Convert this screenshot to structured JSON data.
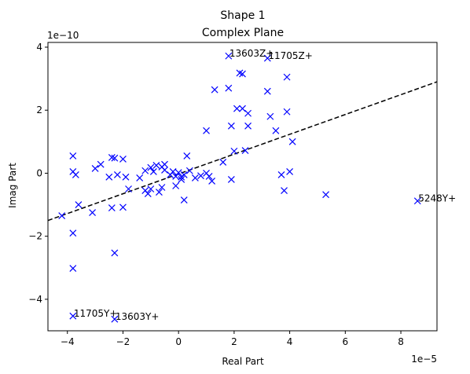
{
  "chart_data": {
    "type": "scatter",
    "title_line1": "Shape 1",
    "title_line2": "Complex Plane",
    "xlabel": "Real Part",
    "ylabel": "Imag Part",
    "x_exponent": "1e−5",
    "y_exponent": "1e−10",
    "xlim": [
      -4.7e-05,
      9.3e-05
    ],
    "ylim": [
      -5e-10,
      4.15e-10
    ],
    "xticks": [
      -4e-05,
      -2e-05,
      0,
      2e-05,
      4e-05,
      6e-05,
      8e-05
    ],
    "xtick_labels": [
      "−4",
      "−2",
      "0",
      "2",
      "4",
      "6",
      "8"
    ],
    "yticks": [
      -4e-10,
      -2e-10,
      0,
      2e-10,
      4e-10
    ],
    "ytick_labels": [
      "−4",
      "−2",
      "0",
      "2",
      "4"
    ],
    "grid": false,
    "marker": "x",
    "marker_color": "#0000ff",
    "fit_line": {
      "style": "dashed",
      "color": "#000000",
      "x": [
        -4.7e-05,
        9.3e-05
      ],
      "y": [
        -1.5e-10,
        2.9e-10
      ]
    },
    "points": [
      [
        -3.8e-05,
        -4.53e-10
      ],
      [
        -2.3e-05,
        -4.63e-10
      ],
      [
        -3.8e-05,
        -3.02e-10
      ],
      [
        -2.3e-05,
        -2.53e-10
      ],
      [
        -3.8e-05,
        -1.9e-10
      ],
      [
        -4.2e-05,
        -1.35e-10
      ],
      [
        -3.1e-05,
        -1.25e-10
      ],
      [
        -2.4e-05,
        -1.1e-10
      ],
      [
        -2e-05,
        -1.08e-10
      ],
      [
        -3.8e-05,
        5.5e-11
      ],
      [
        -3.8e-05,
        5e-12
      ],
      [
        -3.7e-05,
        -5e-12
      ],
      [
        -3.6e-05,
        -1e-10
      ],
      [
        -3e-05,
        1.5e-11
      ],
      [
        -2.8e-05,
        2.8e-11
      ],
      [
        -2.5e-05,
        -1.2e-11
      ],
      [
        -2.4e-05,
        5e-11
      ],
      [
        -2.3e-05,
        4.8e-11
      ],
      [
        -2.2e-05,
        -5e-12
      ],
      [
        -2e-05,
        4.5e-11
      ],
      [
        -1.9e-05,
        -1.2e-11
      ],
      [
        -1.8e-05,
        -5e-11
      ],
      [
        -1.4e-05,
        -1.5e-11
      ],
      [
        -1.2e-05,
        -5.5e-11
      ],
      [
        -1.2e-05,
        8e-12
      ],
      [
        -1.1e-05,
        -6.5e-11
      ],
      [
        -1e-05,
        1.8e-11
      ],
      [
        -1e-05,
        -5e-11
      ],
      [
        -9e-06,
        5e-12
      ],
      [
        -8e-06,
        2.5e-11
      ],
      [
        -7e-06,
        -6e-11
      ],
      [
        -6e-06,
        -4.5e-11
      ],
      [
        -6e-06,
        2e-11
      ],
      [
        -5e-06,
        1e-11
      ],
      [
        -5e-06,
        2.8e-11
      ],
      [
        -3e-06,
        -5e-12
      ],
      [
        -2e-06,
        5e-12
      ],
      [
        -1e-06,
        -4e-11
      ],
      [
        -1e-06,
        -1e-11
      ],
      [
        0.0,
        2e-12
      ],
      [
        1e-06,
        -1.2e-11
      ],
      [
        1e-06,
        -2e-11
      ],
      [
        2e-06,
        -5e-12
      ],
      [
        2e-06,
        -8.5e-11
      ],
      [
        3e-06,
        5.5e-11
      ],
      [
        4e-06,
        8e-12
      ],
      [
        6e-06,
        -1.5e-11
      ],
      [
        8e-06,
        -8e-12
      ],
      [
        1e-05,
        0.0
      ],
      [
        1.2e-05,
        -2.5e-11
      ],
      [
        1e-05,
        1.35e-10
      ],
      [
        1.1e-05,
        -1e-11
      ],
      [
        1.3e-05,
        2.65e-10
      ],
      [
        1.8e-05,
        3.72e-10
      ],
      [
        1.8e-05,
        2.7e-10
      ],
      [
        1.9e-05,
        1.5e-10
      ],
      [
        2e-05,
        7e-11
      ],
      [
        1.9e-05,
        -2e-11
      ],
      [
        2.1e-05,
        2.05e-10
      ],
      [
        2.2e-05,
        3.18e-10
      ],
      [
        2.3e-05,
        3.15e-10
      ],
      [
        2.3e-05,
        2.05e-10
      ],
      [
        2.5e-05,
        1.9e-10
      ],
      [
        2.5e-05,
        1.5e-10
      ],
      [
        2.4e-05,
        7.2e-11
      ],
      [
        1.6e-05,
        3.5e-11
      ],
      [
        3.2e-05,
        3.65e-10
      ],
      [
        3.2e-05,
        2.6e-10
      ],
      [
        3.3e-05,
        1.8e-10
      ],
      [
        3.5e-05,
        1.35e-10
      ],
      [
        3.7e-05,
        -5e-12
      ],
      [
        3.8e-05,
        -5.5e-11
      ],
      [
        3.9e-05,
        3.05e-10
      ],
      [
        3.9e-05,
        1.95e-10
      ],
      [
        4e-05,
        5e-12
      ],
      [
        4.1e-05,
        1e-10
      ],
      [
        5.3e-05,
        -6.8e-11
      ],
      [
        8.6e-05,
        -8.8e-11
      ]
    ],
    "annotations": [
      {
        "text": "13603Z+",
        "x": 1.8e-05,
        "y": 3.72e-10
      },
      {
        "text": "11705Z+",
        "x": 3.2e-05,
        "y": 3.65e-10
      },
      {
        "text": "5248Y+",
        "x": 8.6e-05,
        "y": -8.8e-11
      },
      {
        "text": "11705Y+",
        "x": -3.8e-05,
        "y": -4.53e-10
      },
      {
        "text": "13603Y+",
        "x": -2.3e-05,
        "y": -4.63e-10
      }
    ]
  }
}
